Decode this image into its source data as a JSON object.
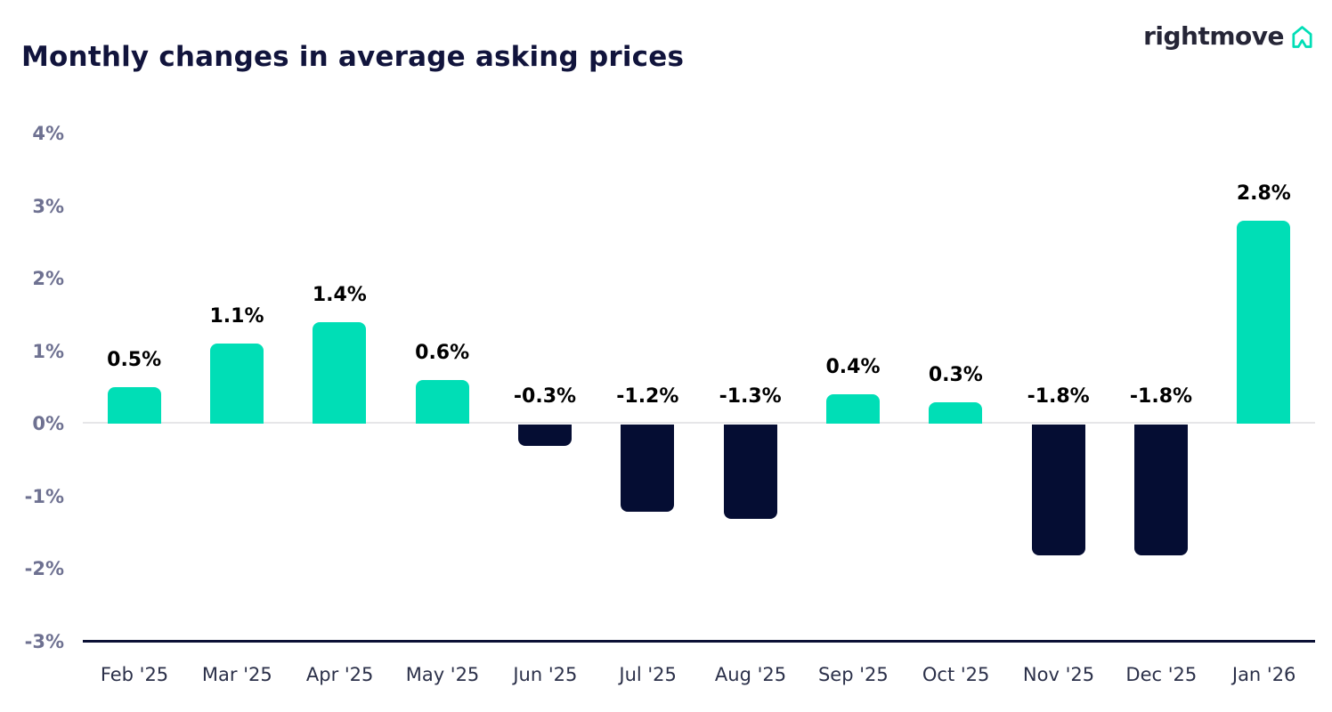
{
  "header": {
    "title": "Monthly changes in average asking prices",
    "logo_text": "rightmove",
    "logo_icon": "rightmove-house-icon"
  },
  "colors": {
    "bar_positive": "#00DEB6",
    "bar_negative": "#050D33",
    "title_text": "#11143C",
    "y_axis_label": "#6E7191",
    "x_axis_label": "#2B3049",
    "data_label": "#000000",
    "zero_line": "#E6E6E8",
    "baseline": "#0B1035",
    "logo_text_color": "#262637",
    "logo_icon_color": "#00DEB6"
  },
  "chart_data": {
    "type": "bar",
    "title": "Monthly changes in average asking prices",
    "categories": [
      "Feb '25",
      "Mar '25",
      "Apr '25",
      "May '25",
      "Jun '25",
      "Jul '25",
      "Aug '25",
      "Sep '25",
      "Oct '25",
      "Nov '25",
      "Dec '25",
      "Jan '26"
    ],
    "values": [
      0.5,
      1.1,
      1.4,
      0.6,
      -0.3,
      -1.2,
      -1.3,
      0.4,
      0.3,
      -1.8,
      -1.8,
      2.8
    ],
    "value_labels": [
      "0.5%",
      "1.1%",
      "1.4%",
      "0.6%",
      "-0.3%",
      "-1.2%",
      "-1.3%",
      "0.4%",
      "0.3%",
      "-1.8%",
      "-1.8%",
      "2.8%"
    ],
    "xlabel": "",
    "ylabel": "",
    "ylim": [
      -3,
      4
    ],
    "y_ticks": [
      {
        "value": 4,
        "label": "4%"
      },
      {
        "value": 3,
        "label": "3%"
      },
      {
        "value": 2,
        "label": "2%"
      },
      {
        "value": 1,
        "label": "1%"
      },
      {
        "value": 0,
        "label": "0%"
      },
      {
        "value": -1,
        "label": "-1%"
      },
      {
        "value": -2,
        "label": "-2%"
      },
      {
        "value": -3,
        "label": "-3%"
      }
    ],
    "grid": "zero-line-only",
    "legend": "none",
    "bar_color_positive": "#00DEB6",
    "bar_color_negative": "#050D33"
  }
}
